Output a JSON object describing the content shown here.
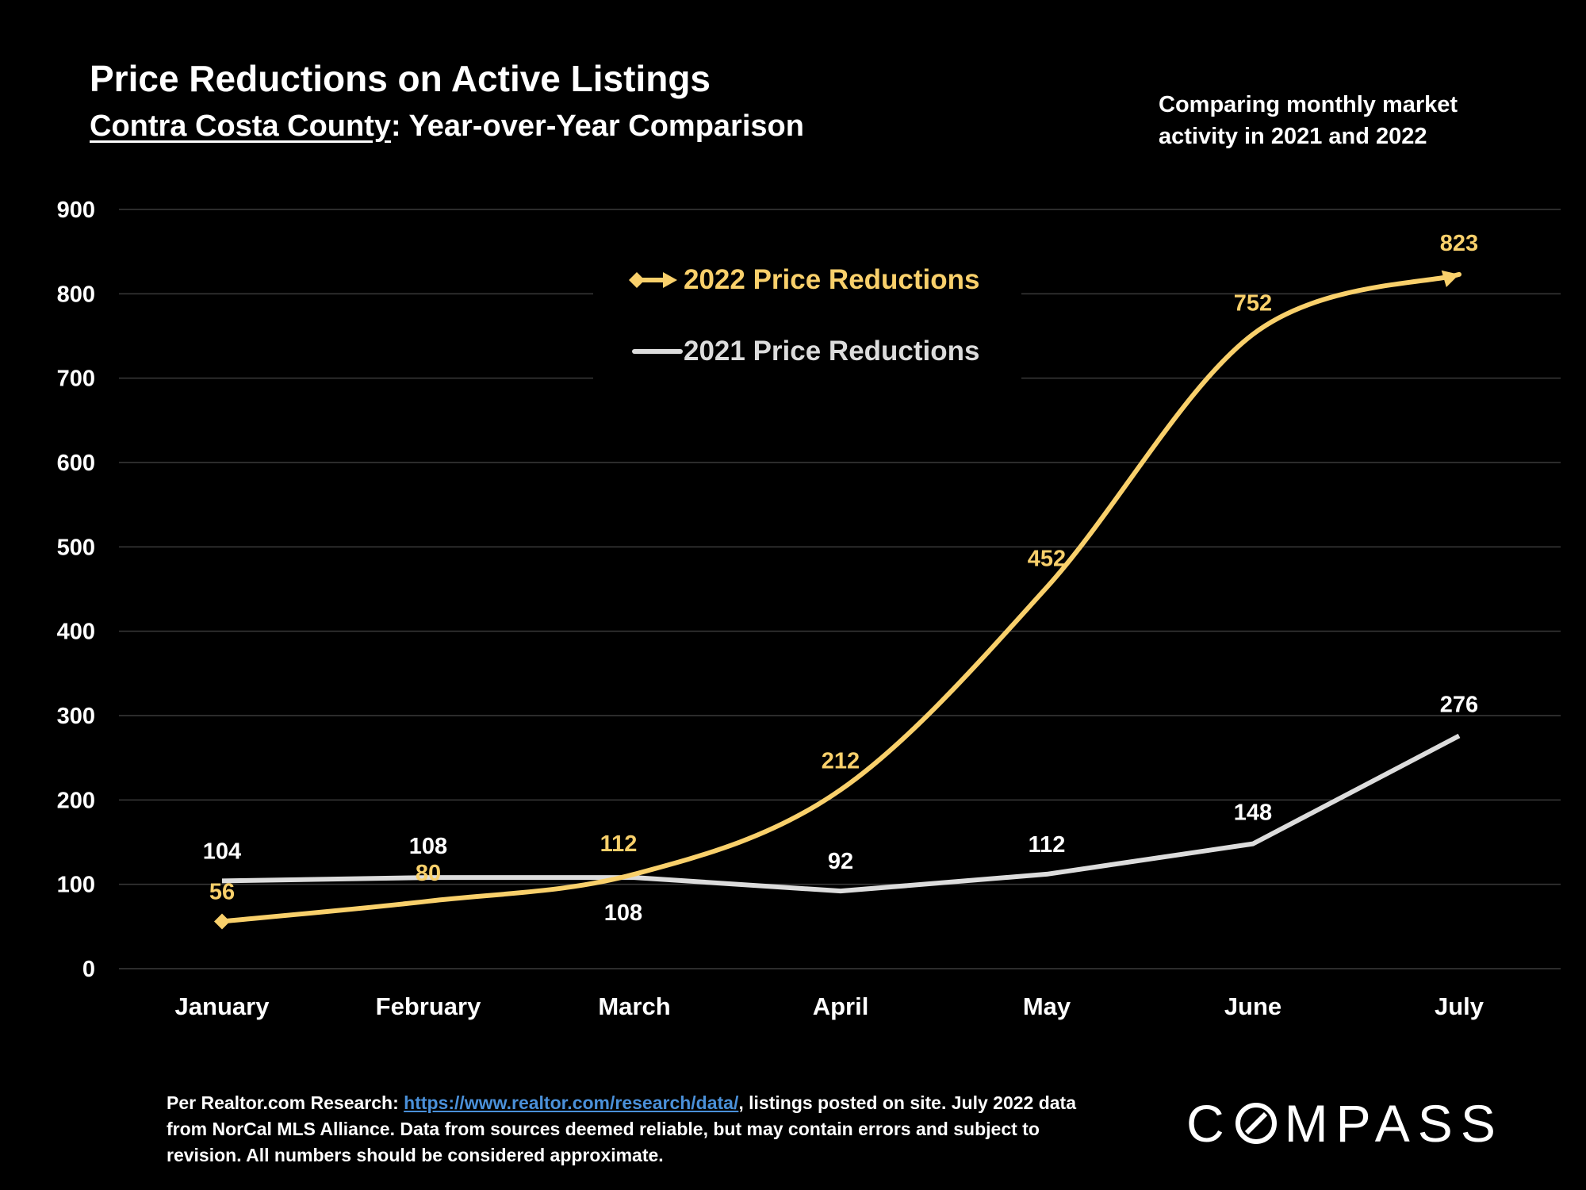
{
  "header": {
    "title": "Price Reductions on Active Listings",
    "subtitle_county": "Contra Costa County",
    "subtitle_rest": ": Year-over-Year Comparison",
    "side_note": "Comparing monthly market activity in 2021 and 2022"
  },
  "colors": {
    "series_2022": "#f9d06b",
    "series_2021": "#dcdcdc",
    "grid": "#3a3a3a",
    "background": "#000000"
  },
  "chart_data": {
    "type": "line",
    "categories": [
      "January",
      "February",
      "March",
      "April",
      "May",
      "June",
      "July"
    ],
    "ylim": [
      0,
      900
    ],
    "yticks": [
      0,
      100,
      200,
      300,
      400,
      500,
      600,
      700,
      800,
      900
    ],
    "grid": true,
    "legend_position": "top-center",
    "series": [
      {
        "name": "2022 Price Reductions",
        "key": "s2022",
        "values": [
          56,
          80,
          112,
          212,
          452,
          752,
          823
        ]
      },
      {
        "name": "2021 Price Reductions",
        "key": "s2021",
        "values": [
          104,
          108,
          108,
          92,
          112,
          148,
          276
        ]
      }
    ]
  },
  "footnote": {
    "prefix": "Per Realtor.com Research:  ",
    "link": "https://www.realtor.com/research/data/",
    "suffix": ", listings posted on site. July 2022 data from NorCal MLS Alliance. Data from sources deemed reliable, but may contain errors and subject to revision. All numbers should be considered approximate."
  },
  "logo": {
    "before": "C",
    "after": "MPASS"
  }
}
